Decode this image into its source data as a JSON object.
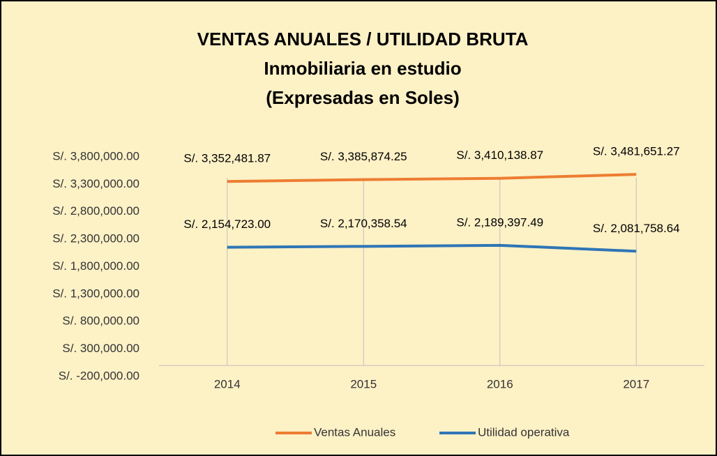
{
  "chart_data": {
    "type": "line",
    "title": "VENTAS ANUALES / UTILIDAD BRUTA",
    "subtitle": [
      "Inmobiliaria en estudio",
      "(Expresadas en Soles)"
    ],
    "categories": [
      "2014",
      "2015",
      "2016",
      "2017"
    ],
    "series": [
      {
        "name": "Ventas Anuales",
        "color": "#ed7d31",
        "values": [
          3352481.87,
          3385874.25,
          3410138.87,
          3481651.27
        ],
        "value_labels": [
          "S/. 3,352,481.87",
          "S/. 3,385,874.25",
          "S/. 3,410,138.87",
          "S/. 3,481,651.27"
        ]
      },
      {
        "name": "Utilidad operativa",
        "color": "#2e75b6",
        "values": [
          2154723.0,
          2170358.54,
          2189397.49,
          2081758.64
        ],
        "value_labels": [
          "S/. 2,154,723.00",
          "S/. 2,170,358.54",
          "S/. 2,189,397.49",
          "S/. 2,081,758.64"
        ]
      }
    ],
    "ylim": [
      -200000,
      3800000
    ],
    "yticks": [
      {
        "value": 3800000,
        "label": "S/. 3,800,000.00"
      },
      {
        "value": 3300000,
        "label": "S/. 3,300,000.00"
      },
      {
        "value": 2800000,
        "label": "S/. 2,800,000.00"
      },
      {
        "value": 2300000,
        "label": "S/. 2,300,000.00"
      },
      {
        "value": 1800000,
        "label": "S/. 1,800,000.00"
      },
      {
        "value": 1300000,
        "label": "S/. 1,300,000.00"
      },
      {
        "value": 800000,
        "label": "S/. 800,000.00"
      },
      {
        "value": 300000,
        "label": "S/. 300,000.00"
      },
      {
        "value": -200000,
        "label": "S/. -200,000.00"
      }
    ],
    "legend": "bottom"
  }
}
